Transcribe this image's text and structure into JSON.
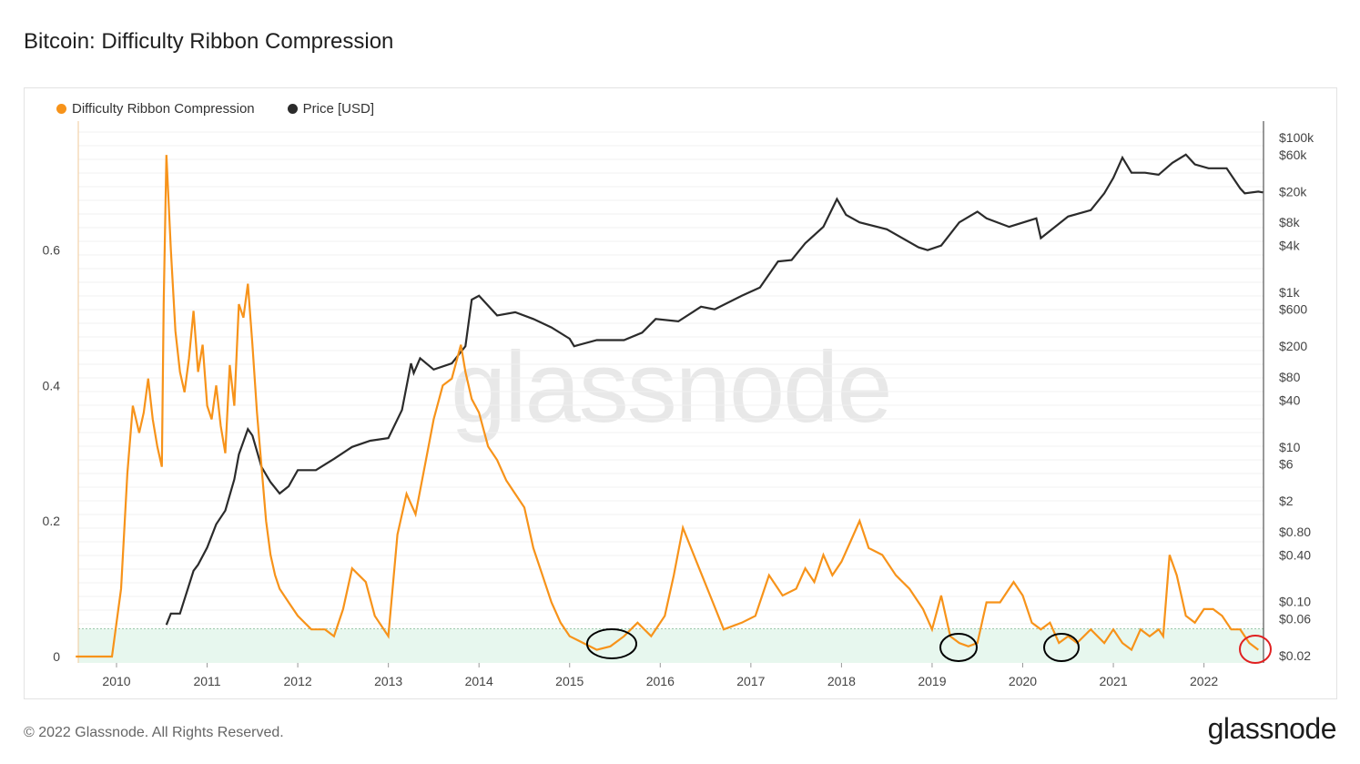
{
  "title": "Bitcoin: Difficulty Ribbon Compression",
  "footer": {
    "copyright": "© 2022 Glassnode. All Rights Reserved.",
    "logo": "glassnode"
  },
  "watermark": "glassnode",
  "legend": [
    {
      "label": "Difficulty Ribbon Compression",
      "color": "#f7931a"
    },
    {
      "label": "Price [USD]",
      "color": "#2b2b2b"
    }
  ],
  "colors": {
    "ribbon": "#f7931a",
    "price": "#2b2b2b",
    "band": "#e7f7ee",
    "highlight_black": "#000000",
    "highlight_red": "#e02020"
  },
  "chart_data": {
    "type": "line",
    "title": "Bitcoin: Difficulty Ribbon Compression",
    "x_range": [
      "2009-07",
      "2022-09"
    ],
    "x_ticks": [
      "2010",
      "2011",
      "2012",
      "2013",
      "2014",
      "2015",
      "2016",
      "2017",
      "2018",
      "2019",
      "2020",
      "2021",
      "2022"
    ],
    "left_axis": {
      "ticks": [
        "0",
        "0.2",
        "0.4",
        "0.6"
      ],
      "ylim": [
        0,
        0.79
      ]
    },
    "right_axis": {
      "scale": "log",
      "ticks": [
        "$100k",
        "$60k",
        "$20k",
        "$8k",
        "$4k",
        "$1k",
        "$600",
        "$200",
        "$80",
        "$40",
        "$10",
        "$6",
        "$2",
        "$0.80",
        "$0.40",
        "$0.10",
        "$0.06",
        "$0.02"
      ]
    },
    "shaded_band": {
      "from": 0,
      "to": 0.041
    },
    "series": [
      {
        "name": "Difficulty Ribbon Compression",
        "axis": "left",
        "x": [
          2009.55,
          2009.95,
          2010.05,
          2010.12,
          2010.18,
          2010.25,
          2010.3,
          2010.35,
          2010.4,
          2010.45,
          2010.5,
          2010.52,
          2010.55,
          2010.6,
          2010.65,
          2010.7,
          2010.75,
          2010.8,
          2010.85,
          2010.9,
          2010.95,
          2011.0,
          2011.05,
          2011.1,
          2011.15,
          2011.2,
          2011.25,
          2011.3,
          2011.35,
          2011.4,
          2011.45,
          2011.5,
          2011.55,
          2011.6,
          2011.65,
          2011.7,
          2011.75,
          2011.8,
          2011.9,
          2012.0,
          2012.15,
          2012.3,
          2012.4,
          2012.5,
          2012.6,
          2012.75,
          2012.85,
          2013.0,
          2013.1,
          2013.2,
          2013.3,
          2013.4,
          2013.5,
          2013.6,
          2013.7,
          2013.8,
          2013.85,
          2013.92,
          2014.0,
          2014.1,
          2014.2,
          2014.3,
          2014.4,
          2014.5,
          2014.6,
          2014.7,
          2014.8,
          2014.9,
          2015.0,
          2015.15,
          2015.3,
          2015.45,
          2015.6,
          2015.75,
          2015.9,
          2016.05,
          2016.15,
          2016.25,
          2016.4,
          2016.55,
          2016.7,
          2016.9,
          2017.05,
          2017.2,
          2017.35,
          2017.5,
          2017.6,
          2017.7,
          2017.8,
          2017.9,
          2018.0,
          2018.1,
          2018.2,
          2018.3,
          2018.45,
          2018.6,
          2018.75,
          2018.9,
          2019.0,
          2019.1,
          2019.2,
          2019.3,
          2019.4,
          2019.5,
          2019.6,
          2019.75,
          2019.9,
          2020.0,
          2020.1,
          2020.2,
          2020.3,
          2020.4,
          2020.5,
          2020.6,
          2020.75,
          2020.9,
          2021.0,
          2021.1,
          2021.2,
          2021.3,
          2021.4,
          2021.5,
          2021.55,
          2021.62,
          2021.7,
          2021.8,
          2021.9,
          2022.0,
          2022.1,
          2022.2,
          2022.3,
          2022.4,
          2022.5,
          2022.6
        ],
        "y": [
          0,
          0,
          0.1,
          0.27,
          0.37,
          0.33,
          0.36,
          0.41,
          0.35,
          0.31,
          0.28,
          0.52,
          0.74,
          0.6,
          0.48,
          0.42,
          0.39,
          0.44,
          0.51,
          0.42,
          0.46,
          0.37,
          0.35,
          0.4,
          0.34,
          0.3,
          0.43,
          0.37,
          0.52,
          0.5,
          0.55,
          0.46,
          0.36,
          0.28,
          0.2,
          0.15,
          0.12,
          0.1,
          0.08,
          0.06,
          0.04,
          0.04,
          0.03,
          0.07,
          0.13,
          0.11,
          0.06,
          0.03,
          0.18,
          0.24,
          0.21,
          0.28,
          0.35,
          0.4,
          0.41,
          0.46,
          0.42,
          0.38,
          0.36,
          0.31,
          0.29,
          0.26,
          0.24,
          0.22,
          0.16,
          0.12,
          0.08,
          0.05,
          0.03,
          0.02,
          0.01,
          0.015,
          0.03,
          0.05,
          0.03,
          0.06,
          0.12,
          0.19,
          0.14,
          0.09,
          0.04,
          0.05,
          0.06,
          0.12,
          0.09,
          0.1,
          0.13,
          0.11,
          0.15,
          0.12,
          0.14,
          0.17,
          0.2,
          0.16,
          0.15,
          0.12,
          0.1,
          0.07,
          0.04,
          0.09,
          0.03,
          0.02,
          0.015,
          0.02,
          0.08,
          0.08,
          0.11,
          0.09,
          0.05,
          0.04,
          0.05,
          0.02,
          0.03,
          0.02,
          0.04,
          0.02,
          0.04,
          0.02,
          0.01,
          0.04,
          0.03,
          0.04,
          0.03,
          0.15,
          0.12,
          0.06,
          0.05,
          0.07,
          0.07,
          0.06,
          0.04,
          0.04,
          0.02,
          0.01
        ]
      },
      {
        "name": "Price [USD]",
        "axis": "right",
        "x": [
          2010.55,
          2010.6,
          2010.7,
          2010.85,
          2010.9,
          2011.0,
          2011.1,
          2011.2,
          2011.3,
          2011.35,
          2011.45,
          2011.5,
          2011.6,
          2011.7,
          2011.8,
          2011.9,
          2012.0,
          2012.2,
          2012.4,
          2012.6,
          2012.8,
          2013.0,
          2013.15,
          2013.25,
          2013.28,
          2013.35,
          2013.5,
          2013.7,
          2013.85,
          2013.92,
          2014.0,
          2014.2,
          2014.4,
          2014.6,
          2014.8,
          2015.0,
          2015.05,
          2015.3,
          2015.6,
          2015.8,
          2015.95,
          2016.2,
          2016.45,
          2016.6,
          2016.9,
          2017.1,
          2017.3,
          2017.45,
          2017.6,
          2017.8,
          2017.95,
          2018.05,
          2018.2,
          2018.5,
          2018.85,
          2018.95,
          2019.1,
          2019.3,
          2019.5,
          2019.6,
          2019.85,
          2020.15,
          2020.2,
          2020.5,
          2020.75,
          2020.9,
          2021.0,
          2021.1,
          2021.2,
          2021.35,
          2021.5,
          2021.65,
          2021.8,
          2021.9,
          2022.05,
          2022.25,
          2022.4,
          2022.45,
          2022.6,
          2022.65
        ],
        "y": [
          0.05,
          0.07,
          0.07,
          0.25,
          0.3,
          0.5,
          1.0,
          1.5,
          3.8,
          8,
          17,
          14,
          5.5,
          3.5,
          2.5,
          3.1,
          5,
          5,
          7,
          10,
          12,
          13,
          30,
          120,
          90,
          140,
          100,
          120,
          200,
          800,
          900,
          500,
          550,
          450,
          350,
          250,
          200,
          240,
          240,
          300,
          450,
          420,
          650,
          600,
          900,
          1150,
          2500,
          2600,
          4300,
          7000,
          16000,
          10000,
          8000,
          6500,
          3800,
          3500,
          4000,
          8000,
          11000,
          9000,
          7000,
          9000,
          5000,
          9500,
          11500,
          19000,
          30000,
          55000,
          35000,
          35000,
          33000,
          47000,
          60000,
          45000,
          40000,
          40000,
          22000,
          19000,
          20000,
          19500
        ]
      }
    ]
  }
}
